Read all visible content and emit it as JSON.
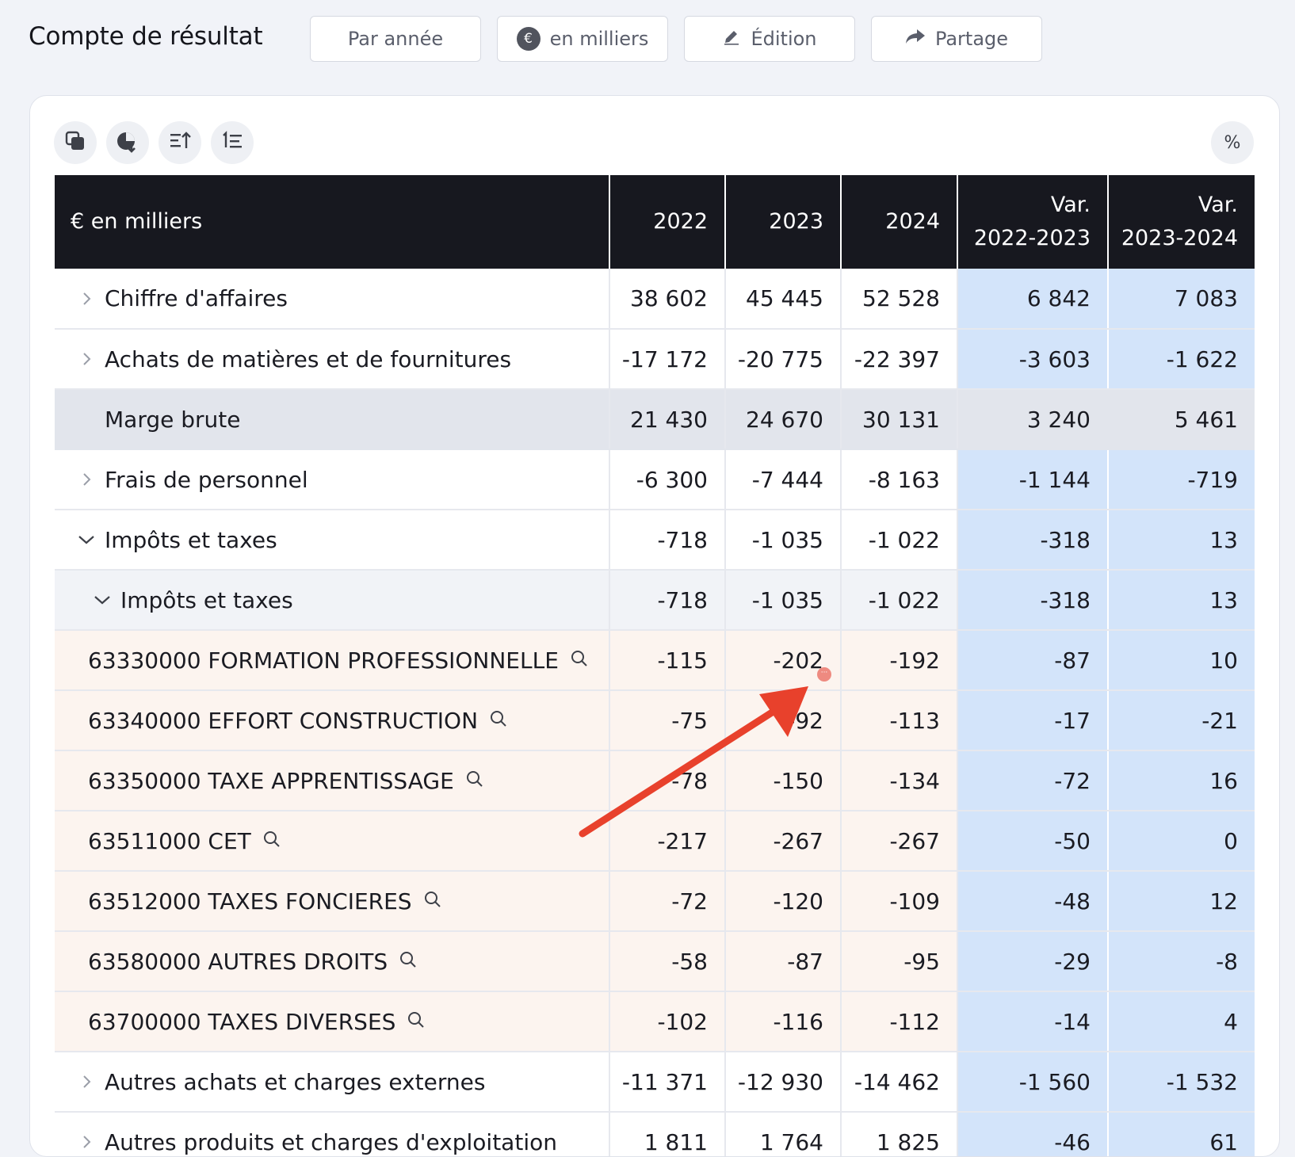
{
  "header": {
    "title": "Compte de résultat",
    "buttons": {
      "period": "Par année",
      "unit": "en milliers",
      "unit_symbol": "€",
      "edit": "Édition",
      "share": "Partage"
    }
  },
  "toolbar": {
    "icons": [
      "copy-icon",
      "chart-download-icon",
      "sort-icon",
      "numbered-list-icon"
    ],
    "percent_label": "%"
  },
  "table": {
    "columns": [
      "€ en milliers",
      "2022",
      "2023",
      "2024",
      "Var. 2022-2023",
      "Var. 2023-2024"
    ],
    "column_parts": {
      "var1_line1": "Var.",
      "var1_line2": "2022-2023",
      "var2_line1": "Var.",
      "var2_line2": "2023-2024"
    },
    "rows": [
      {
        "label": "Chiffre d'affaires",
        "values": [
          "38 602",
          "45 445",
          "52 528",
          "6 842",
          "7 083"
        ]
      },
      {
        "label": "Achats de matières et de fournitures",
        "values": [
          "-17 172",
          "-20 775",
          "-22 397",
          "-3 603",
          "-1 622"
        ]
      },
      {
        "label": "Marge brute",
        "values": [
          "21 430",
          "24 670",
          "30 131",
          "3 240",
          "5 461"
        ]
      },
      {
        "label": "Frais de personnel",
        "values": [
          "-6 300",
          "-7 444",
          "-8 163",
          "-1 144",
          "-719"
        ]
      },
      {
        "label": "Impôts et taxes",
        "values": [
          "-718",
          "-1 035",
          "-1 022",
          "-318",
          "13"
        ]
      },
      {
        "label": "Impôts et taxes",
        "values": [
          "-718",
          "-1 035",
          "-1 022",
          "-318",
          "13"
        ]
      },
      {
        "label": "63330000 FORMATION PROFESSIONNELLE",
        "values": [
          "-115",
          "-202",
          "-192",
          "-87",
          "10"
        ]
      },
      {
        "label": "63340000 EFFORT CONSTRUCTION",
        "values": [
          "-75",
          "-92",
          "-113",
          "-17",
          "-21"
        ]
      },
      {
        "label": "63350000 TAXE APPRENTISSAGE",
        "values": [
          "-78",
          "-150",
          "-134",
          "-72",
          "16"
        ]
      },
      {
        "label": "63511000 CET",
        "values": [
          "-217",
          "-267",
          "-267",
          "-50",
          "0"
        ]
      },
      {
        "label": "63512000 TAXES FONCIERES",
        "values": [
          "-72",
          "-120",
          "-109",
          "-48",
          "12"
        ]
      },
      {
        "label": "63580000 AUTRES DROITS",
        "values": [
          "-58",
          "-87",
          "-95",
          "-29",
          "-8"
        ]
      },
      {
        "label": "63700000 TAXES DIVERSES",
        "values": [
          "-102",
          "-116",
          "-112",
          "-14",
          "4"
        ]
      },
      {
        "label": "Autres achats et charges externes",
        "values": [
          "-11 371",
          "-12 930",
          "-14 462",
          "-1 560",
          "-1 532"
        ]
      },
      {
        "label": "Autres produits et charges d'exploitation",
        "values": [
          "1 811",
          "1 764",
          "1 825",
          "-46",
          "61"
        ]
      }
    ]
  },
  "colors": {
    "header_bg": "#17181f",
    "variance_bg": "#d3e4fa",
    "subtotal_bg": "#e2e5ec",
    "account_bg": "#fcf4ef",
    "arrow": "#e8412c"
  }
}
